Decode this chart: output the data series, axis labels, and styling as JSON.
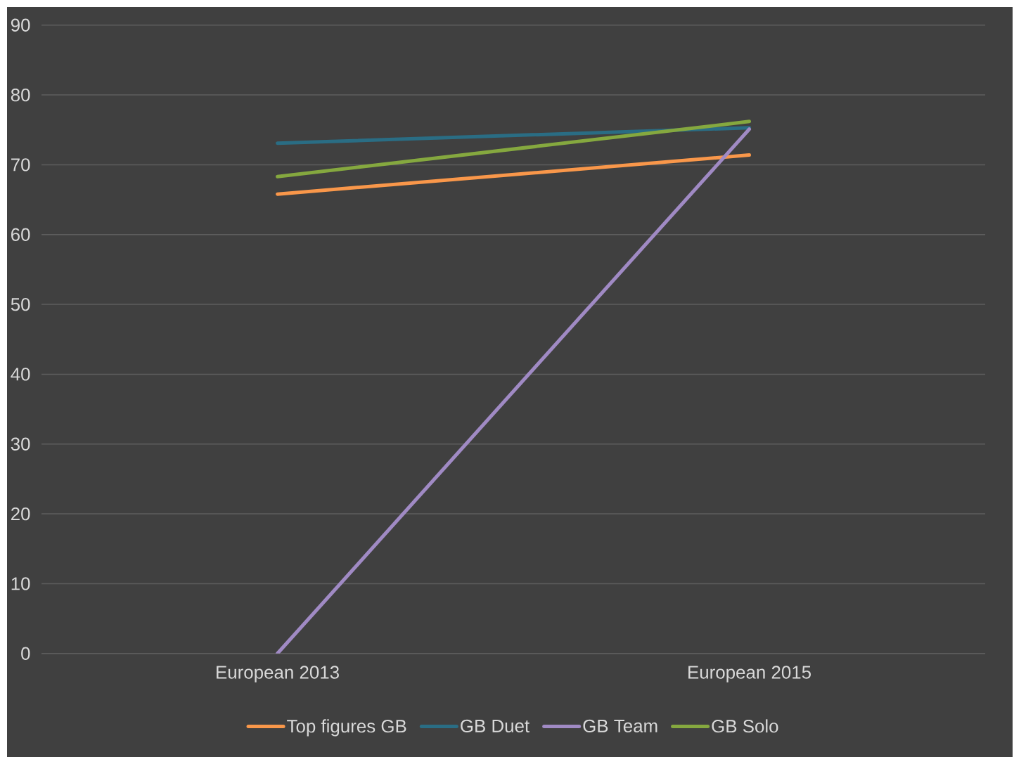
{
  "chart_data": {
    "type": "line",
    "categories": [
      "European 2013",
      "European 2015"
    ],
    "series": [
      {
        "name": "Top figures GB",
        "color": "#f9974a",
        "values": [
          65.8,
          71.4
        ]
      },
      {
        "name": "GB Duet",
        "color": "#2a6d84",
        "values": [
          73.1,
          75.3
        ]
      },
      {
        "name": "GB Team",
        "color": "#a08ac4",
        "values": [
          0,
          75.1
        ]
      },
      {
        "name": "GB Solo",
        "color": "#85a83f",
        "values": [
          68.3,
          76.2
        ]
      }
    ],
    "ylim": [
      0,
      90
    ],
    "yticks": [
      0,
      10,
      20,
      30,
      40,
      50,
      60,
      70,
      80,
      90
    ],
    "grid": "y",
    "legend": "bottom"
  }
}
